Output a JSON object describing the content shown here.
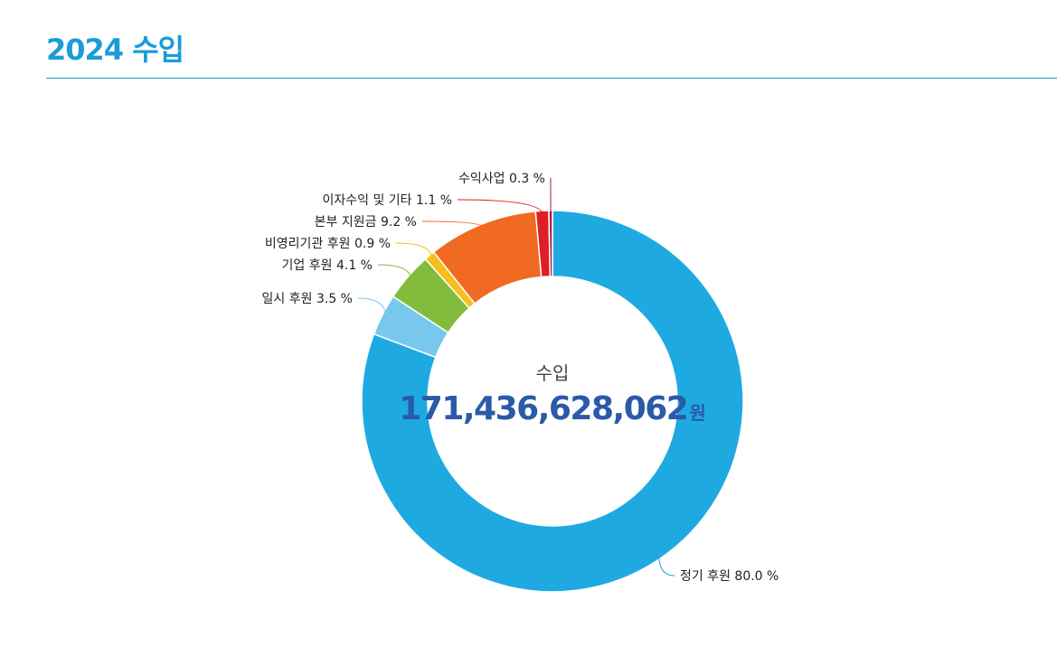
{
  "page": {
    "title": "2024 수입"
  },
  "chart_data": {
    "type": "pie",
    "donut": true,
    "center_label": "수입",
    "center_value": "171,436,628,062",
    "center_unit": "원",
    "slices": [
      {
        "label": "정기 후원",
        "percent_text": "80.0 %",
        "value": 80.0,
        "color": "#1eaae1"
      },
      {
        "label": "일시 후원",
        "percent_text": "3.5 %",
        "value": 3.5,
        "color": "#78c8ee"
      },
      {
        "label": "기업 후원",
        "percent_text": "4.1 %",
        "value": 4.1,
        "color": "#82bc3c"
      },
      {
        "label": "비영리기관 후원",
        "percent_text": "0.9 %",
        "value": 0.9,
        "color": "#f6bf1a"
      },
      {
        "label": "본부 지원금",
        "percent_text": "9.2 %",
        "value": 9.2,
        "color": "#f06a22"
      },
      {
        "label": "이자수익 및 기타",
        "percent_text": "1.1 %",
        "value": 1.1,
        "color": "#de1f24"
      },
      {
        "label": "수익사업",
        "percent_text": "0.3 %",
        "value": 0.3,
        "color": "#b0184c"
      }
    ]
  }
}
